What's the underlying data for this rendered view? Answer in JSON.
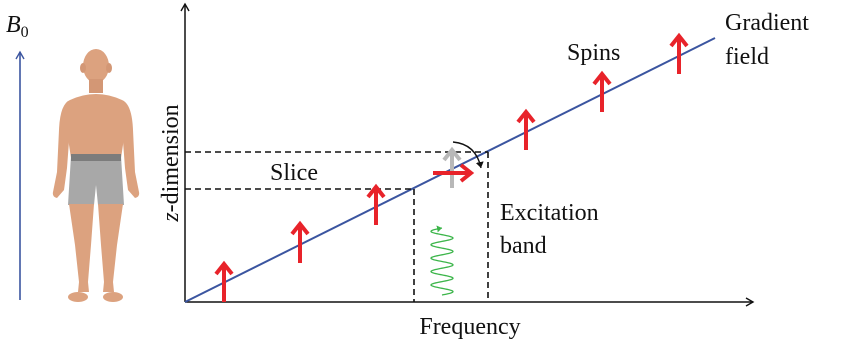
{
  "labels": {
    "field": "B",
    "field_sub": "0",
    "x_axis": "Frequency",
    "y_axis_italic": "z",
    "y_axis_rest": "-dimension",
    "spins": "Spins",
    "gradient_line1": "Gradient",
    "gradient_line2": "field",
    "slice": "Slice",
    "excitation_line1": "Excitation",
    "excitation_line2": "band"
  },
  "colors": {
    "field_arrow": "#3b55a0",
    "gradient_line": "#3b55a0",
    "spin": "#e8232a",
    "spin_faded": "#b8b8b8",
    "rf_wave": "#3cb54a",
    "skin": "#dca27f",
    "shorts": "#a8a8a8",
    "waistband": "#7c7c7c",
    "axes": "#111111"
  },
  "icons": {
    "person": "human-figure-icon",
    "rf_pulse": "sine-wave-icon",
    "flip": "curved-arrow-icon"
  }
}
